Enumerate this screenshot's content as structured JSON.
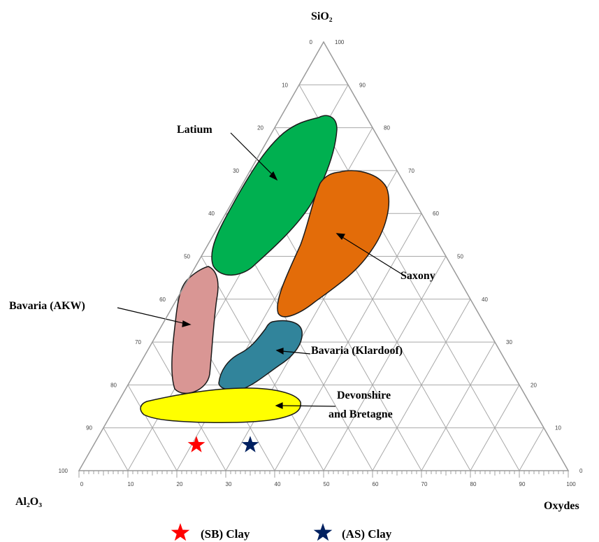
{
  "chart_data": {
    "type": "ternary",
    "vertices": {
      "top": "SiO₂",
      "bottom_left": "Al₂O₃",
      "bottom_right": "Oxydes"
    },
    "axis_range": [
      0,
      100
    ],
    "major_ticks": [
      0,
      10,
      20,
      30,
      40,
      50,
      60,
      70,
      80,
      90,
      100
    ],
    "grid": true,
    "regions": [
      {
        "name": "Latium",
        "color": "#00b050"
      },
      {
        "name": "Saxony",
        "color": "#e36c09"
      },
      {
        "name": "Bavaria (AKW)",
        "color": "#d99694"
      },
      {
        "name": "Bavaria (Klardoof)",
        "color": "#31849b"
      },
      {
        "name": "Devonshire and Bretagne",
        "line1": "Devonshire",
        "line2": "and Bretagne",
        "color": "#ffff00"
      }
    ],
    "samples": [
      {
        "name": "(SB) Clay",
        "color": "#ff0000",
        "sio2": 6,
        "al2o3": 73,
        "oxydes": 21
      },
      {
        "name": "(AS) Clay",
        "color": "#002060",
        "sio2": 6,
        "al2o3": 62,
        "oxydes": 32
      }
    ],
    "legend": {
      "position": "bottom",
      "items": [
        {
          "label": "(SB) Clay",
          "marker": "star",
          "color": "#ff0000"
        },
        {
          "label": "(AS) Clay",
          "marker": "star",
          "color": "#002060"
        }
      ]
    }
  }
}
